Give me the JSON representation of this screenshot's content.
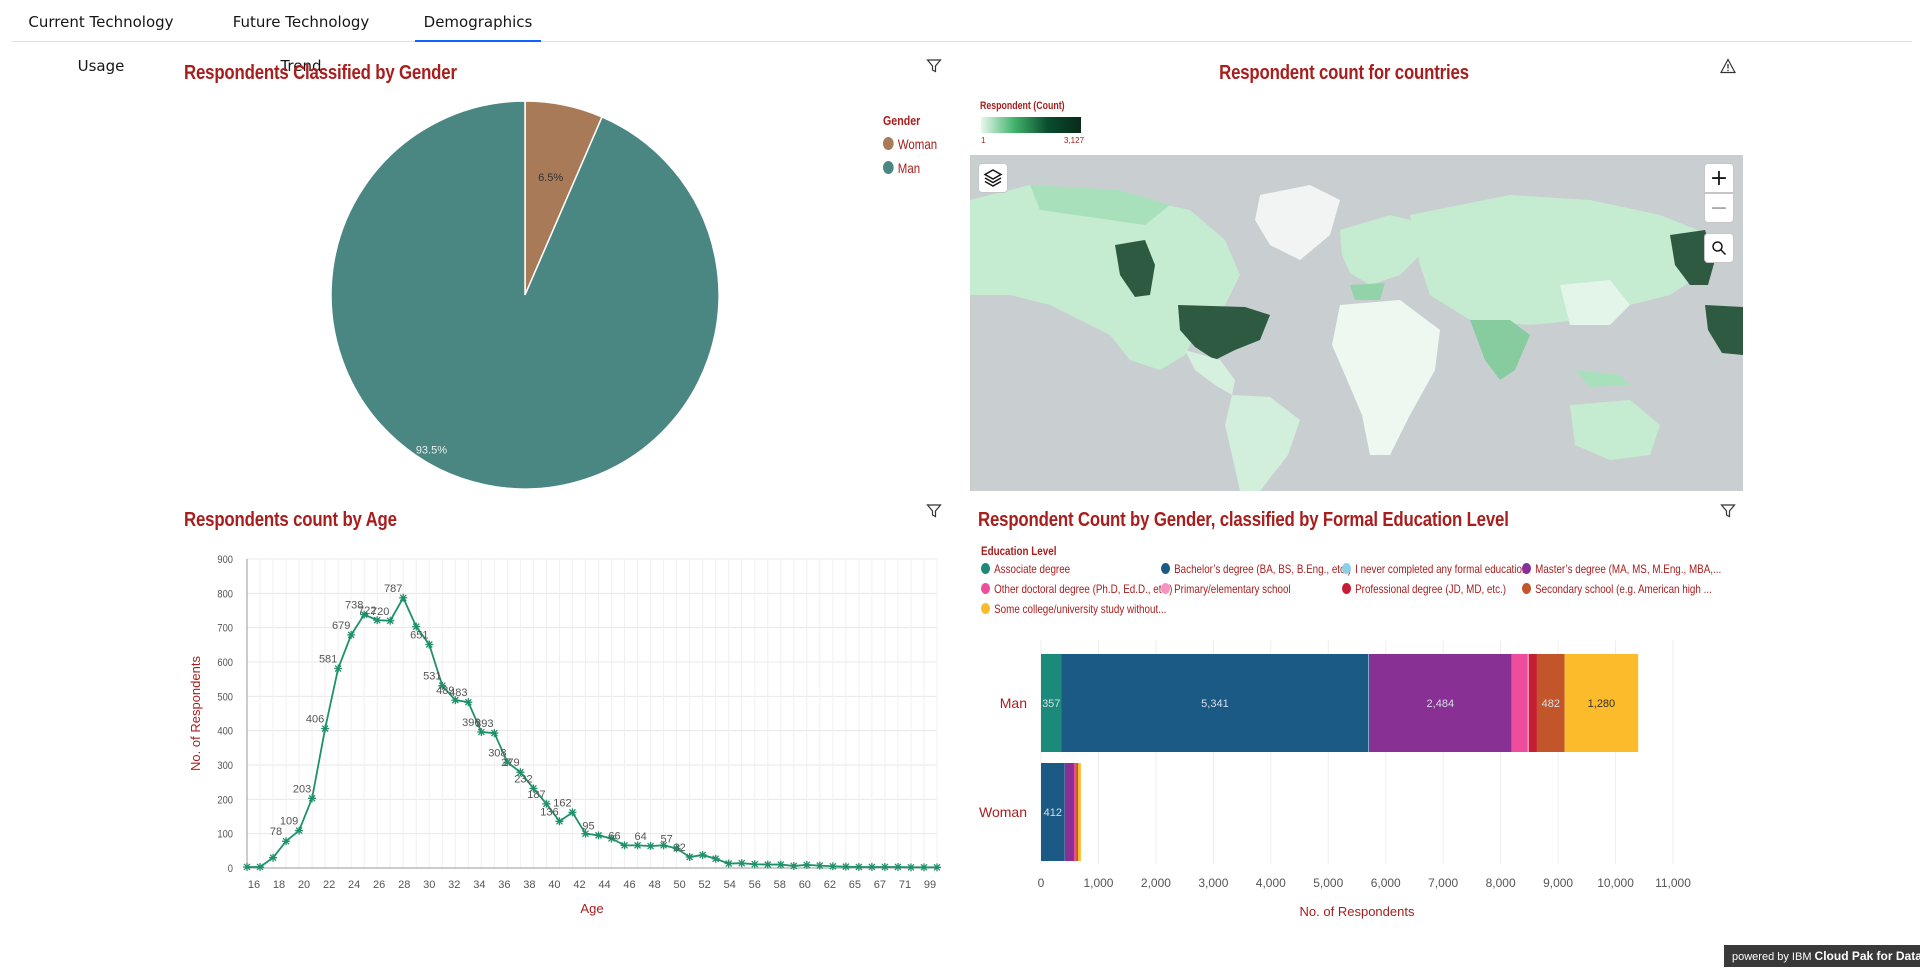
{
  "tabs": [
    {
      "label": "Current Technology Usage"
    },
    {
      "label": "Future Technology Trend"
    },
    {
      "label": "Demographics"
    }
  ],
  "gender_chart": {
    "title": "Respondents Classified by Gender",
    "legend_title": "Gender"
  },
  "map_chart": {
    "title": "Respondent count for countries",
    "scale_title": "Respondent (Count)",
    "scale_min": "1",
    "scale_max": "3,127",
    "zoom_in": "+",
    "zoom_out": "−"
  },
  "age_chart": {
    "title": "Respondents count by Age"
  },
  "edu_chart": {
    "title": "Respondent Count by Gender, classified by Formal Education Level",
    "legend_title": "Education Level"
  },
  "footer": {
    "prefix": "powered by IBM",
    "brand": "Cloud Pak for Data"
  },
  "colors": {
    "title": "#a91d1d",
    "man": "#4a8783",
    "woman": "#a97a58",
    "line": "#1f9169",
    "tab_active": "#0f62fe"
  },
  "chart_data": [
    {
      "type": "pie",
      "title": "Respondents Classified by Gender",
      "legend_title": "Gender",
      "legend_position": "top-right",
      "slices": [
        {
          "name": "Woman",
          "percent": 6.5,
          "label": "6.5%",
          "color": "#a97a58"
        },
        {
          "name": "Man",
          "percent": 93.5,
          "label": "93.5%",
          "color": "#4a8783"
        }
      ]
    },
    {
      "type": "line",
      "title": "Respondents count by Age",
      "xlabel": "Age",
      "ylabel": "No. of Respondents",
      "ylim": [
        0,
        900
      ],
      "yticks": [
        0,
        100,
        200,
        300,
        400,
        500,
        600,
        700,
        800,
        900
      ],
      "xtick_labels": [
        "16",
        "18",
        "20",
        "22",
        "24",
        "26",
        "28",
        "30",
        "32",
        "34",
        "36",
        "38",
        "40",
        "42",
        "44",
        "46",
        "48",
        "50",
        "52",
        "54",
        "56",
        "58",
        "60",
        "62",
        "65",
        "67",
        "71",
        "99"
      ],
      "grid": true,
      "series": [
        {
          "values": [
            3,
            3,
            30,
            78,
            109,
            203,
            406,
            581,
            679,
            738,
            722,
            720,
            787,
            703,
            651,
            531,
            489,
            483,
            396,
            393,
            308,
            279,
            232,
            187,
            136,
            162,
            100,
            95,
            86,
            66,
            66,
            64,
            66,
            57,
            32,
            38,
            27,
            13,
            14,
            11,
            10,
            10,
            6,
            9,
            7,
            5,
            4,
            3,
            3,
            3,
            3,
            2,
            2,
            2
          ],
          "data_labels": [
            {
              "index": 3,
              "text": "78"
            },
            {
              "index": 4,
              "text": "109"
            },
            {
              "index": 5,
              "text": "203"
            },
            {
              "index": 6,
              "text": "406"
            },
            {
              "index": 7,
              "text": "581"
            },
            {
              "index": 8,
              "text": "679"
            },
            {
              "index": 9,
              "text": "738"
            },
            {
              "index": 10,
              "text": "722"
            },
            {
              "index": 11,
              "text": "720"
            },
            {
              "index": 12,
              "text": "787"
            },
            {
              "index": 14,
              "text": "651"
            },
            {
              "index": 15,
              "text": "531"
            },
            {
              "index": 16,
              "text": "489"
            },
            {
              "index": 17,
              "text": "483"
            },
            {
              "index": 18,
              "text": "396"
            },
            {
              "index": 19,
              "text": "393"
            },
            {
              "index": 20,
              "text": "308"
            },
            {
              "index": 21,
              "text": "279"
            },
            {
              "index": 22,
              "text": "232"
            },
            {
              "index": 23,
              "text": "187"
            },
            {
              "index": 24,
              "text": "136"
            },
            {
              "index": 25,
              "text": "162"
            },
            {
              "index": 27,
              "text": "95"
            },
            {
              "index": 29,
              "text": "66"
            },
            {
              "index": 31,
              "text": "64"
            },
            {
              "index": 33,
              "text": "57"
            },
            {
              "index": 34,
              "text": "32"
            }
          ]
        }
      ]
    },
    {
      "type": "bar",
      "orientation": "horizontal",
      "stacked": true,
      "title": "Respondent Count by Gender, classified by Formal Education Level",
      "legend_title": "Education Level",
      "legend_position": "top",
      "xlabel": "No. of Respondents",
      "xlim": [
        0,
        11000
      ],
      "xticks": [
        "0",
        "1,000",
        "2,000",
        "3,000",
        "4,000",
        "5,000",
        "6,000",
        "7,000",
        "8,000",
        "9,000",
        "10,000",
        "11,000"
      ],
      "categories": [
        "Man",
        "Woman"
      ],
      "series": [
        {
          "name": "Associate degree",
          "color": "#1b8a7a",
          "values": [
            357,
            0
          ],
          "labels": [
            "357",
            ""
          ]
        },
        {
          "name": "Bachelor’s degree (BA, BS, B.Eng., etc.)",
          "color": "#1c5a86",
          "values": [
            5341,
            412
          ],
          "labels": [
            "5,341",
            "412"
          ]
        },
        {
          "name": "I never completed any formal education",
          "color": "#8fcfe6",
          "values": [
            10,
            2
          ],
          "labels": [
            "",
            ""
          ]
        },
        {
          "name": "Master’s degree (MA, MS, M.Eng., MBA,...",
          "color": "#883094",
          "values": [
            2484,
            160
          ],
          "labels": [
            "2,484",
            ""
          ]
        },
        {
          "name": "Other doctoral degree (Ph.D, Ed.D., etc.)",
          "color": "#ee4d9b",
          "values": [
            280,
            25
          ],
          "labels": [
            "",
            ""
          ]
        },
        {
          "name": "Primary/elementary school",
          "color": "#f394c3",
          "values": [
            20,
            3
          ],
          "labels": [
            "",
            ""
          ]
        },
        {
          "name": "Professional degree (JD, MD, etc.)",
          "color": "#c51d32",
          "values": [
            140,
            12
          ],
          "labels": [
            "",
            ""
          ]
        },
        {
          "name": "Secondary school (e.g. American high ...",
          "color": "#c2562a",
          "values": [
            482,
            30
          ],
          "labels": [
            "482",
            ""
          ]
        },
        {
          "name": "Some college/university study without...",
          "color": "#fbbb2a",
          "values": [
            1280,
            50
          ],
          "labels": [
            "1,280",
            ""
          ]
        }
      ]
    }
  ]
}
